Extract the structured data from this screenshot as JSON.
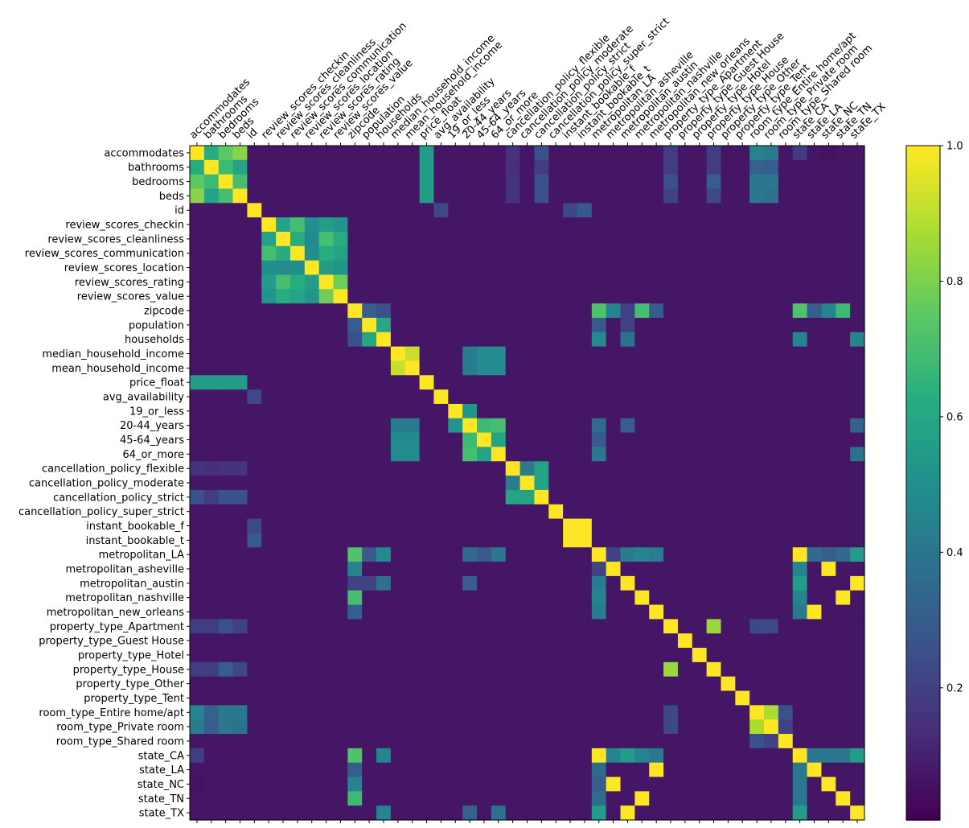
{
  "chart_data": {
    "type": "heatmap",
    "title": "",
    "colormap": "viridis",
    "vmin": 0.0,
    "vmax": 1.0,
    "colorbar_ticks": [
      0.2,
      0.4,
      0.6,
      0.8,
      1.0
    ],
    "colorbar_tick_labels": [
      "0.2",
      "0.4",
      "0.6",
      "0.8",
      "1.0"
    ],
    "grid": false,
    "legend": "colorbar-right",
    "labels": [
      "accommodates",
      "bathrooms",
      "bedrooms",
      "beds",
      "id",
      "review_scores_checkin",
      "review_scores_cleanliness",
      "review_scores_communication",
      "review_scores_location",
      "review_scores_rating",
      "review_scores_value",
      "zipcode",
      "population",
      "households",
      "median_household_income",
      "mean_household_income",
      "price_float",
      "avg_availability",
      "19_or_less",
      "20-44_years",
      "45-64_years",
      "64_or_more",
      "cancellation_policy_flexible",
      "cancellation_policy_moderate",
      "cancellation_policy_strict",
      "cancellation_policy_super_strict",
      "instant_bookable_f",
      "instant_bookable_t",
      "metropolitan_LA",
      "metropolitan_asheville",
      "metropolitan_austin",
      "metropolitan_nashville",
      "metropolitan_new_orleans",
      "property_type_Apartment",
      "property_type_Guest House",
      "property_type_Hotel",
      "property_type_House",
      "property_type_Other",
      "property_type_Tent",
      "room_type_Entire home/apt",
      "room_type_Private room",
      "room_type_Shared room",
      "state_CA",
      "state_LA",
      "state_NC",
      "state_TN",
      "state_TX"
    ],
    "background_value": 0.06,
    "cells": [
      [
        0,
        1,
        0.62
      ],
      [
        0,
        2,
        0.75
      ],
      [
        0,
        3,
        0.82
      ],
      [
        1,
        2,
        0.68
      ],
      [
        1,
        3,
        0.58
      ],
      [
        2,
        3,
        0.7
      ],
      [
        0,
        16,
        0.55
      ],
      [
        1,
        16,
        0.55
      ],
      [
        2,
        16,
        0.55
      ],
      [
        3,
        16,
        0.55
      ],
      [
        0,
        39,
        0.45
      ],
      [
        0,
        40,
        0.42
      ],
      [
        1,
        39,
        0.32
      ],
      [
        1,
        40,
        0.3
      ],
      [
        2,
        39,
        0.4
      ],
      [
        2,
        40,
        0.4
      ],
      [
        3,
        39,
        0.4
      ],
      [
        3,
        40,
        0.38
      ],
      [
        0,
        24,
        0.25
      ],
      [
        1,
        24,
        0.18
      ],
      [
        2,
        24,
        0.25
      ],
      [
        3,
        24,
        0.25
      ],
      [
        0,
        22,
        0.15
      ],
      [
        1,
        22,
        0.14
      ],
      [
        2,
        22,
        0.15
      ],
      [
        3,
        22,
        0.15
      ],
      [
        0,
        33,
        0.18
      ],
      [
        1,
        33,
        0.18
      ],
      [
        2,
        33,
        0.25
      ],
      [
        3,
        33,
        0.2
      ],
      [
        0,
        36,
        0.18
      ],
      [
        1,
        36,
        0.18
      ],
      [
        2,
        36,
        0.3
      ],
      [
        3,
        36,
        0.22
      ],
      [
        0,
        44,
        0.05
      ],
      [
        0,
        42,
        0.18
      ],
      [
        5,
        6,
        0.58
      ],
      [
        5,
        7,
        0.7
      ],
      [
        5,
        8,
        0.5
      ],
      [
        5,
        9,
        0.55
      ],
      [
        5,
        10,
        0.52
      ],
      [
        6,
        7,
        0.62
      ],
      [
        6,
        8,
        0.48
      ],
      [
        6,
        9,
        0.7
      ],
      [
        6,
        10,
        0.62
      ],
      [
        7,
        8,
        0.5
      ],
      [
        7,
        9,
        0.62
      ],
      [
        7,
        10,
        0.58
      ],
      [
        8,
        9,
        0.55
      ],
      [
        8,
        10,
        0.52
      ],
      [
        9,
        10,
        0.78
      ],
      [
        4,
        17,
        0.22
      ],
      [
        4,
        27,
        0.28
      ],
      [
        4,
        26,
        0.22
      ],
      [
        11,
        12,
        0.3
      ],
      [
        11,
        13,
        0.25
      ],
      [
        11,
        28,
        0.72
      ],
      [
        11,
        29,
        0.45
      ],
      [
        11,
        31,
        0.7
      ],
      [
        11,
        42,
        0.72
      ],
      [
        11,
        45,
        0.68
      ],
      [
        11,
        43,
        0.3
      ],
      [
        11,
        44,
        0.45
      ],
      [
        11,
        32,
        0.3
      ],
      [
        11,
        30,
        0.2
      ],
      [
        12,
        13,
        0.6
      ],
      [
        12,
        28,
        0.28
      ],
      [
        12,
        30,
        0.2
      ],
      [
        13,
        28,
        0.48
      ],
      [
        13,
        30,
        0.38
      ],
      [
        13,
        46,
        0.45
      ],
      [
        13,
        42,
        0.45
      ],
      [
        14,
        15,
        0.92
      ],
      [
        14,
        20,
        0.48
      ],
      [
        14,
        21,
        0.48
      ],
      [
        15,
        20,
        0.48
      ],
      [
        15,
        21,
        0.48
      ],
      [
        14,
        19,
        0.42
      ],
      [
        15,
        19,
        0.42
      ],
      [
        18,
        19,
        0.52
      ],
      [
        19,
        20,
        0.68
      ],
      [
        19,
        21,
        0.7
      ],
      [
        20,
        21,
        0.58
      ],
      [
        19,
        28,
        0.35
      ],
      [
        19,
        30,
        0.3
      ],
      [
        20,
        28,
        0.28
      ],
      [
        21,
        28,
        0.4
      ],
      [
        21,
        46,
        0.38
      ],
      [
        19,
        46,
        0.32
      ],
      [
        22,
        23,
        0.42
      ],
      [
        22,
        24,
        0.58
      ],
      [
        23,
        24,
        0.58
      ],
      [
        26,
        27,
        1.0
      ],
      [
        28,
        42,
        1.0
      ],
      [
        28,
        29,
        0.2
      ],
      [
        28,
        30,
        0.42
      ],
      [
        28,
        31,
        0.45
      ],
      [
        28,
        32,
        0.42
      ],
      [
        28,
        43,
        0.35
      ],
      [
        28,
        44,
        0.3
      ],
      [
        28,
        45,
        0.35
      ],
      [
        28,
        46,
        0.55
      ],
      [
        29,
        44,
        1.0
      ],
      [
        30,
        46,
        1.0
      ],
      [
        31,
        45,
        1.0
      ],
      [
        32,
        43,
        1.0
      ],
      [
        30,
        42,
        0.55
      ],
      [
        31,
        42,
        0.45
      ],
      [
        32,
        42,
        0.4
      ],
      [
        29,
        42,
        0.45
      ],
      [
        33,
        36,
        0.85
      ],
      [
        33,
        39,
        0.22
      ],
      [
        33,
        40,
        0.22
      ],
      [
        39,
        40,
        0.88
      ],
      [
        39,
        41,
        0.25
      ],
      [
        40,
        41,
        0.2
      ],
      [
        42,
        43,
        0.4
      ],
      [
        42,
        44,
        0.4
      ],
      [
        42,
        45,
        0.4
      ],
      [
        42,
        46,
        0.55
      ]
    ]
  }
}
